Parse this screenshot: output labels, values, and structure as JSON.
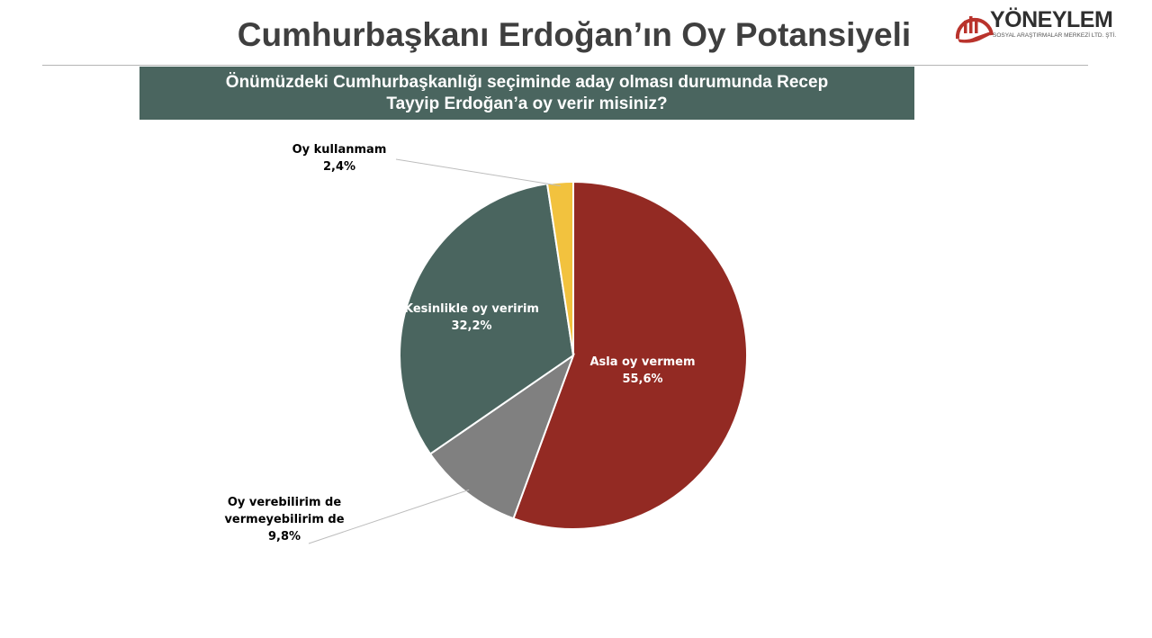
{
  "header": {
    "title": "Cumhurbaşkanı Erdoğan’ın Oy Potansiyeli",
    "logo_name": "YÖNEYLEM",
    "logo_sub": "SOSYAL ARAŞTIRMALAR MERKEZİ LTD. ŞTİ."
  },
  "question": "Önümüzdeki Cumhurbaşkanlığı seçiminde aday olması durumunda Recep Tayyip Erdoğan’a oy verir misiniz?",
  "chart_data": {
    "type": "pie",
    "title": "",
    "slices": [
      {
        "label": "Asla oy vermem",
        "value": 55.6,
        "display": "55,6%",
        "color": "#932a23"
      },
      {
        "label": "Oy verebilirim de vermeyebilirim de",
        "value": 9.8,
        "display": "9,8%",
        "color": "#808080"
      },
      {
        "label": "Kesinlikle oy veririm",
        "value": 32.2,
        "display": "32,2%",
        "color": "#4a655f"
      },
      {
        "label": "Oy kullanmam",
        "value": 2.4,
        "display": "2,4%",
        "color": "#f2c23e"
      }
    ],
    "start": "12 o'clock",
    "direction": "clockwise",
    "legend": "none"
  }
}
